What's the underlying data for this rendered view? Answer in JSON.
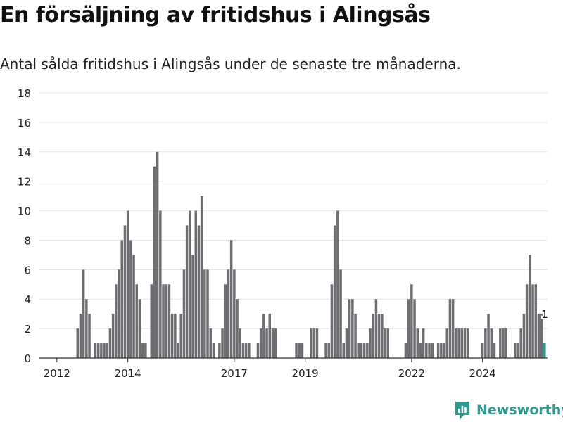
{
  "title": "En försäljning av fritidshus i Alingsås",
  "subtitle": "Antal sålda fritidshus i Alingsås under de senaste tre månaderna.",
  "brand": {
    "name": "Newsworthy",
    "icon": "newsworthy-logo-icon",
    "color": "#2f9a8f"
  },
  "colors": {
    "bar": "#6e6d72",
    "highlight": "#2a9086",
    "grid": "#e3e3e3",
    "axis": "#333333"
  },
  "chart_data": {
    "type": "bar",
    "title": "En försäljning av fritidshus i Alingsås",
    "subtitle": "Antal sålda fritidshus i Alingsås under de senaste tre månaderna.",
    "xlabel": "",
    "ylabel": "",
    "ylim": [
      0,
      18
    ],
    "yticks": [
      0,
      2,
      4,
      6,
      8,
      10,
      12,
      14,
      16,
      18
    ],
    "grid": true,
    "period_unit": "month",
    "start": "2011-10",
    "xticks": [
      {
        "label": "2012",
        "date": "2012-01"
      },
      {
        "label": "2014",
        "date": "2014-01"
      },
      {
        "label": "2017",
        "date": "2017-01"
      },
      {
        "label": "2019",
        "date": "2019-01"
      },
      {
        "label": "2022",
        "date": "2022-01"
      },
      {
        "label": "2024",
        "date": "2024-01"
      }
    ],
    "values": [
      0,
      0,
      0,
      0,
      0,
      0,
      0,
      0,
      0,
      0,
      2,
      3,
      6,
      4,
      3,
      0,
      1,
      1,
      1,
      1,
      1,
      2,
      3,
      5,
      6,
      8,
      9,
      10,
      8,
      7,
      5,
      4,
      1,
      1,
      0,
      5,
      13,
      14,
      10,
      5,
      5,
      5,
      3,
      3,
      1,
      3,
      6,
      9,
      10,
      7,
      10,
      9,
      11,
      6,
      6,
      2,
      1,
      0,
      1,
      2,
      5,
      6,
      8,
      6,
      4,
      2,
      1,
      1,
      1,
      0,
      0,
      1,
      2,
      3,
      2,
      3,
      2,
      2,
      0,
      0,
      0,
      0,
      0,
      0,
      1,
      1,
      1,
      0,
      0,
      2,
      2,
      2,
      0,
      0,
      1,
      1,
      5,
      9,
      10,
      6,
      1,
      2,
      4,
      4,
      3,
      1,
      1,
      1,
      1,
      2,
      3,
      4,
      3,
      3,
      2,
      2,
      0,
      0,
      0,
      0,
      0,
      1,
      4,
      5,
      4,
      2,
      1,
      2,
      1,
      1,
      1,
      0,
      1,
      1,
      1,
      2,
      4,
      4,
      2,
      2,
      2,
      2,
      2,
      0,
      0,
      0,
      0,
      1,
      2,
      3,
      2,
      1,
      0,
      2,
      2,
      2,
      0,
      0,
      1,
      1,
      2,
      3,
      5,
      7,
      5,
      5,
      3,
      3,
      1
    ],
    "highlight_last": true,
    "last_value_label": "1"
  }
}
